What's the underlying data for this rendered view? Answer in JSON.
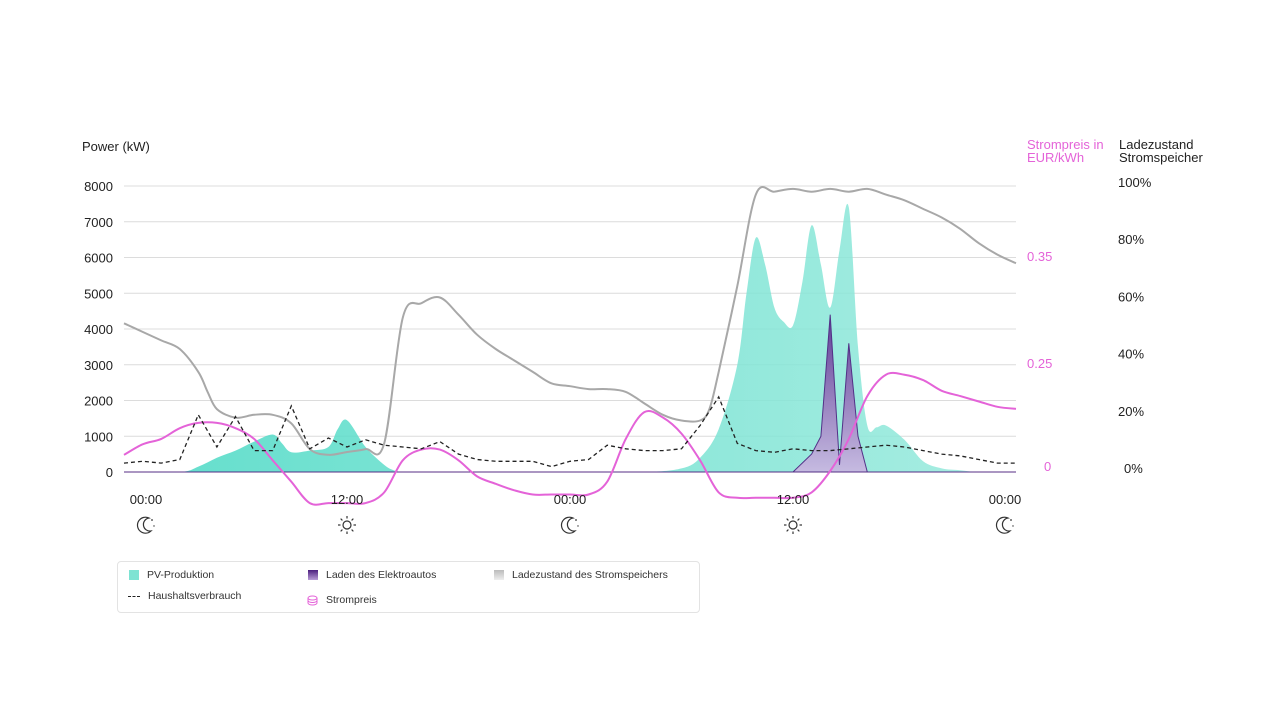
{
  "chart_data": {
    "type": "area",
    "left_axis": {
      "label": "Power (kW)",
      "ticks": [
        "8000",
        "7000",
        "6000",
        "5000",
        "4000",
        "3000",
        "2000",
        "1000",
        "0"
      ],
      "ylim": [
        0,
        8000
      ]
    },
    "price_axis": {
      "label_line1": "Strompreis in",
      "label_line2": "EUR/kWh",
      "ticks": [
        "0.35",
        "0.25",
        "0"
      ]
    },
    "soc_axis": {
      "label_line1": "Ladezustand",
      "label_line2": "Stromspeicher",
      "ticks": [
        "100%",
        "80%",
        "60%",
        "40%",
        "20%",
        "0%"
      ],
      "ylim": [
        0,
        100
      ]
    },
    "x_ticks": [
      "00:00",
      "12:00",
      "00:00",
      "12:00",
      "00:00"
    ],
    "x_icons": [
      "moon",
      "sun",
      "moon",
      "sun",
      "moon"
    ],
    "x_range_hours": [
      0,
      48
    ],
    "series": [
      {
        "name": "PV-Produktion",
        "color": "#7ee3d3",
        "x": [
          0,
          3,
          4,
          5,
          6,
          7,
          8,
          8.5,
          9,
          10,
          11,
          11.5,
          12,
          13,
          14,
          14.5,
          15,
          16,
          17,
          18,
          19,
          20,
          24,
          28,
          30,
          31,
          32,
          33,
          33.5,
          34,
          34.5,
          35,
          35.5,
          36,
          36.5,
          37,
          37.5,
          38,
          38.5,
          39,
          39.5,
          40,
          40.5,
          41,
          42,
          43,
          44,
          45,
          46,
          48
        ],
        "y": [
          0,
          0,
          150,
          400,
          600,
          850,
          1050,
          800,
          550,
          600,
          700,
          1200,
          1450,
          700,
          200,
          50,
          0,
          0,
          0,
          0,
          0,
          0,
          0,
          0,
          100,
          400,
          1200,
          3000,
          5000,
          6550,
          5800,
          4600,
          4200,
          4100,
          5300,
          6900,
          5800,
          4600,
          6200,
          7400,
          3500,
          1300,
          1250,
          1300,
          900,
          300,
          100,
          50,
          0,
          0
        ]
      },
      {
        "name": "Laden des Elektroautos",
        "color": "#6b3aa3",
        "x": [
          0,
          36,
          37,
          37.5,
          38,
          38.5,
          39,
          39.5,
          40,
          48
        ],
        "y": [
          0,
          0,
          500,
          1000,
          4400,
          200,
          3600,
          1000,
          0,
          0
        ]
      },
      {
        "name": "Haushaltsverbrauch",
        "color": "#222222",
        "x": [
          0,
          1,
          2,
          3,
          4,
          5,
          6,
          7,
          8,
          9,
          10,
          11,
          12,
          13,
          14,
          15,
          16,
          17,
          18,
          19,
          20,
          21,
          22,
          23,
          24,
          25,
          26,
          27,
          28,
          29,
          30,
          31,
          32,
          33,
          34,
          35,
          36,
          37,
          38,
          39,
          40,
          41,
          42,
          43,
          44,
          45,
          46,
          47,
          48
        ],
        "y": [
          250,
          300,
          250,
          350,
          1600,
          700,
          1550,
          600,
          600,
          1850,
          650,
          950,
          700,
          900,
          750,
          700,
          650,
          850,
          500,
          350,
          300,
          300,
          300,
          150,
          300,
          350,
          750,
          650,
          600,
          600,
          650,
          1300,
          2100,
          800,
          600,
          550,
          650,
          600,
          600,
          650,
          700,
          750,
          700,
          600,
          500,
          450,
          350,
          250,
          250
        ]
      },
      {
        "name": "Strompreis",
        "color": "#e463d8",
        "x": [
          0,
          1,
          2,
          3,
          4,
          5,
          6,
          7,
          8,
          9,
          10,
          11,
          12,
          13,
          14,
          15,
          16,
          17,
          18,
          19,
          20,
          21,
          22,
          23,
          24,
          25,
          26,
          27,
          28,
          29,
          30,
          31,
          32,
          33,
          34,
          35,
          36,
          37,
          38,
          39,
          40,
          41,
          42,
          43,
          44,
          45,
          46,
          47,
          48
        ],
        "y": [
          0.165,
          0.175,
          0.18,
          0.19,
          0.195,
          0.195,
          0.19,
          0.18,
          0.16,
          0.14,
          0.12,
          0.12,
          0.12,
          0.12,
          0.13,
          0.16,
          0.17,
          0.17,
          0.16,
          0.145,
          0.138,
          0.132,
          0.128,
          0.128,
          0.128,
          0.128,
          0.14,
          0.18,
          0.205,
          0.2,
          0.185,
          0.16,
          0.13,
          0.125,
          0.125,
          0.125,
          0.125,
          0.13,
          0.15,
          0.18,
          0.22,
          0.24,
          0.24,
          0.235,
          0.225,
          0.22,
          0.215,
          0.21,
          0.208
        ]
      },
      {
        "name": "Ladezustand des Stromspeichers",
        "color": "#9a9a9a",
        "x": [
          0,
          1,
          2,
          3,
          4,
          4.5,
          5,
          6,
          7,
          8,
          9,
          10,
          11,
          12,
          13,
          14,
          15,
          16,
          17,
          18,
          19,
          20,
          21,
          22,
          23,
          24,
          25,
          26,
          27,
          28,
          29,
          30,
          31,
          31.5,
          32,
          33,
          34,
          35,
          36,
          37,
          38,
          39,
          40,
          41,
          42,
          43,
          44,
          45,
          46,
          47,
          48
        ],
        "y": [
          52,
          49,
          46,
          43,
          35,
          28,
          22,
          19,
          20,
          20,
          17,
          8,
          6,
          7,
          8,
          10,
          54,
          59,
          61,
          55,
          48,
          43,
          39,
          35,
          31,
          30,
          29,
          29,
          28,
          24,
          20,
          18,
          18,
          22,
          35,
          65,
          97,
          98,
          99,
          98,
          99,
          98,
          99,
          97,
          95,
          92,
          89,
          85,
          80,
          76,
          73
        ]
      }
    ],
    "legend": [
      "PV-Produktion",
      "Laden des Elektroautos",
      "Ladezustand des Stromspeichers",
      "Haushaltsverbrauch",
      "Strompreis"
    ]
  }
}
